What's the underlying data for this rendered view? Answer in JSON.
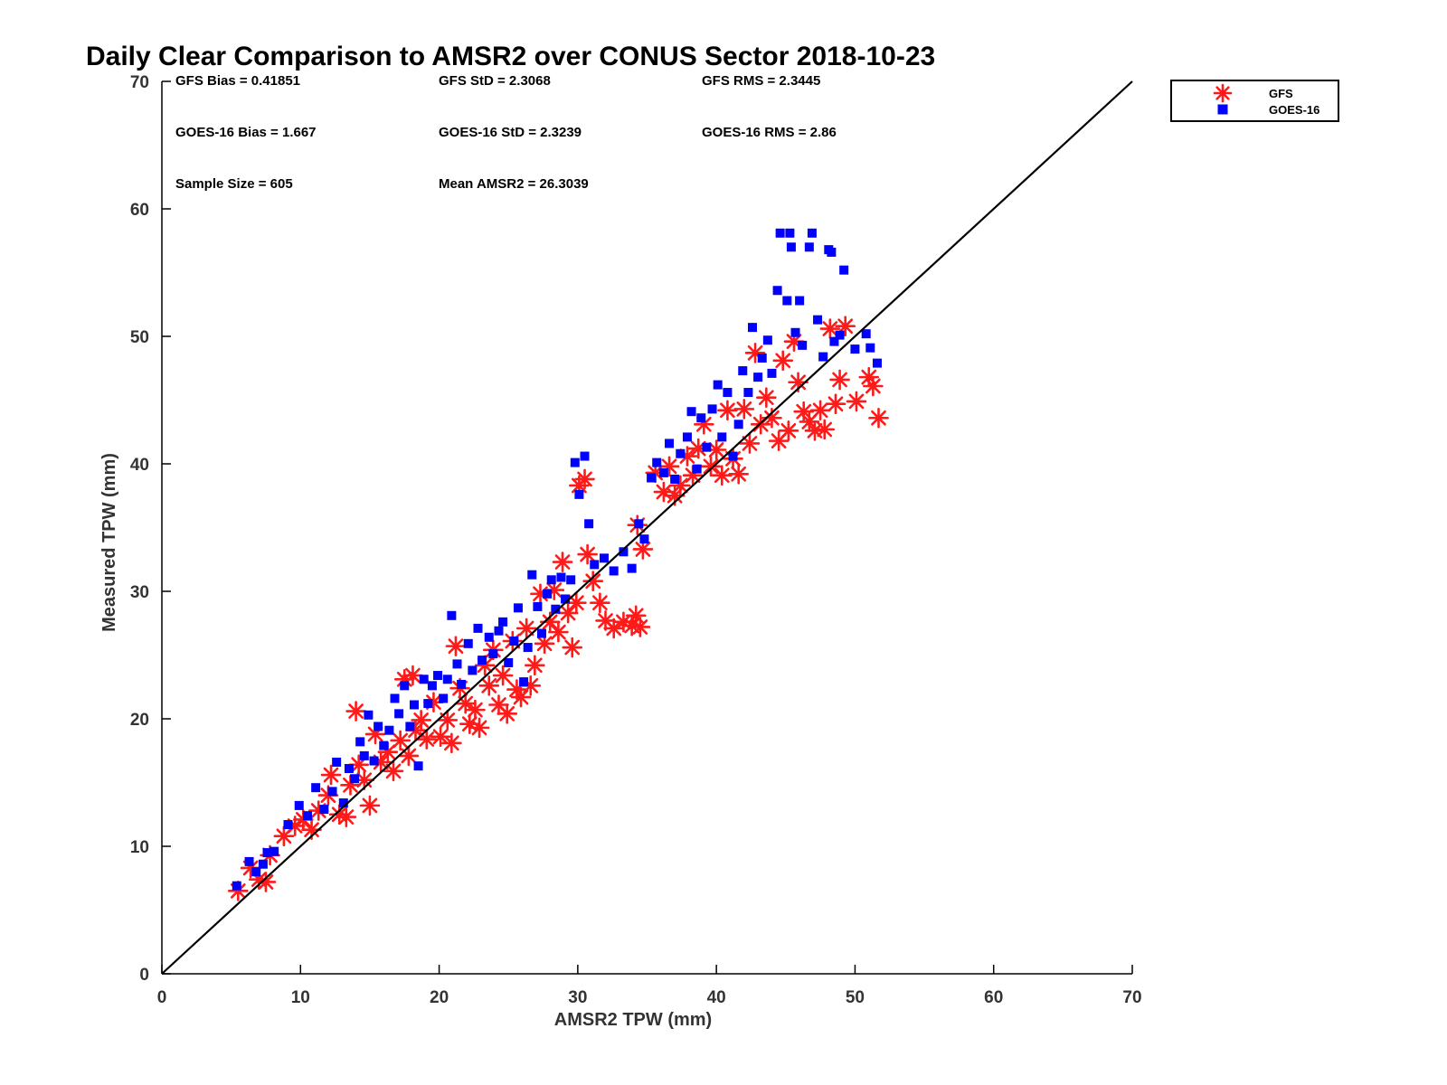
{
  "chart_data": {
    "type": "scatter",
    "title": "Daily Clear Comparison to AMSR2 over CONUS Sector 2018-10-23",
    "xlabel": "AMSR2 TPW (mm)",
    "ylabel": "Measured TPW (mm)",
    "xlim": [
      0,
      70
    ],
    "ylim": [
      0,
      70
    ],
    "xticks": [
      "0",
      "10",
      "20",
      "30",
      "40",
      "50",
      "60",
      "70"
    ],
    "yticks": [
      "0",
      "10",
      "20",
      "30",
      "40",
      "50",
      "60",
      "70"
    ],
    "grid": false,
    "legend_position": "outside-top-right",
    "reference_line": "one-to-one",
    "stats": {
      "gfs_bias": "GFS Bias = 0.41851",
      "gfs_std": "GFS StD = 2.3068",
      "gfs_rms": "GFS RMS = 2.3445",
      "goes_bias": "GOES-16 Bias = 1.667",
      "goes_std": "GOES-16 StD = 2.3239",
      "goes_rms": "GOES-16 RMS = 2.86",
      "sample_size": "Sample Size = 605",
      "mean_amsr2": "Mean AMSR2 = 26.3039"
    },
    "series": [
      {
        "name": "GFS",
        "marker": "asterisk",
        "color": "#ff1a1a",
        "points": [
          [
            5.5,
            6.5
          ],
          [
            6.4,
            8.3
          ],
          [
            7.0,
            7.4
          ],
          [
            7.5,
            7.2
          ],
          [
            7.8,
            9.3
          ],
          [
            8.8,
            10.8
          ],
          [
            9.6,
            11.6
          ],
          [
            10.2,
            12.1
          ],
          [
            10.8,
            11.3
          ],
          [
            11.3,
            12.8
          ],
          [
            12.0,
            14.0
          ],
          [
            12.2,
            15.6
          ],
          [
            12.8,
            12.5
          ],
          [
            13.3,
            12.3
          ],
          [
            13.6,
            14.8
          ],
          [
            14.0,
            20.6
          ],
          [
            14.2,
            16.4
          ],
          [
            14.6,
            15.2
          ],
          [
            15.0,
            13.2
          ],
          [
            15.4,
            18.8
          ],
          [
            15.8,
            16.6
          ],
          [
            16.3,
            17.4
          ],
          [
            16.7,
            15.9
          ],
          [
            17.2,
            18.3
          ],
          [
            17.5,
            23.1
          ],
          [
            17.8,
            17.1
          ],
          [
            18.1,
            23.4
          ],
          [
            18.3,
            19.1
          ],
          [
            18.7,
            19.9
          ],
          [
            19.1,
            18.4
          ],
          [
            19.6,
            21.3
          ],
          [
            20.1,
            18.6
          ],
          [
            20.6,
            19.9
          ],
          [
            20.9,
            18.1
          ],
          [
            21.2,
            25.7
          ],
          [
            21.5,
            22.4
          ],
          [
            21.9,
            21.2
          ],
          [
            22.2,
            19.6
          ],
          [
            22.6,
            20.7
          ],
          [
            22.9,
            19.3
          ],
          [
            23.3,
            24.2
          ],
          [
            23.6,
            22.6
          ],
          [
            23.9,
            25.4
          ],
          [
            24.3,
            21.1
          ],
          [
            24.6,
            23.4
          ],
          [
            24.9,
            20.4
          ],
          [
            25.3,
            26.1
          ],
          [
            25.6,
            22.3
          ],
          [
            25.9,
            21.7
          ],
          [
            26.3,
            27.1
          ],
          [
            26.6,
            22.6
          ],
          [
            26.9,
            24.2
          ],
          [
            27.3,
            29.8
          ],
          [
            27.6,
            25.9
          ],
          [
            28.0,
            27.6
          ],
          [
            28.3,
            30.1
          ],
          [
            28.6,
            26.8
          ],
          [
            28.9,
            32.3
          ],
          [
            29.3,
            28.3
          ],
          [
            29.6,
            25.6
          ],
          [
            29.9,
            29.1
          ],
          [
            30.1,
            38.3
          ],
          [
            30.5,
            38.8
          ],
          [
            30.7,
            32.9
          ],
          [
            31.1,
            30.8
          ],
          [
            31.6,
            29.1
          ],
          [
            32.0,
            27.7
          ],
          [
            32.6,
            27.1
          ],
          [
            33.3,
            27.6
          ],
          [
            33.9,
            27.3
          ],
          [
            34.2,
            28.1
          ],
          [
            34.5,
            27.2
          ],
          [
            34.3,
            35.2
          ],
          [
            34.7,
            33.3
          ],
          [
            35.6,
            39.3
          ],
          [
            36.2,
            37.8
          ],
          [
            36.6,
            39.8
          ],
          [
            37.0,
            37.5
          ],
          [
            37.4,
            38.3
          ],
          [
            37.9,
            40.6
          ],
          [
            38.3,
            39.1
          ],
          [
            38.7,
            41.2
          ],
          [
            39.1,
            43.1
          ],
          [
            39.6,
            39.8
          ],
          [
            40.0,
            41.1
          ],
          [
            40.4,
            39.1
          ],
          [
            40.8,
            44.2
          ],
          [
            41.2,
            40.4
          ],
          [
            41.6,
            39.2
          ],
          [
            42.0,
            44.3
          ],
          [
            42.4,
            41.6
          ],
          [
            42.8,
            48.7
          ],
          [
            43.2,
            43.1
          ],
          [
            43.6,
            45.2
          ],
          [
            44.0,
            43.6
          ],
          [
            44.5,
            41.8
          ],
          [
            44.8,
            48.1
          ],
          [
            45.2,
            42.6
          ],
          [
            45.6,
            49.6
          ],
          [
            45.9,
            46.4
          ],
          [
            46.3,
            44.1
          ],
          [
            46.7,
            43.3
          ],
          [
            47.1,
            42.6
          ],
          [
            47.5,
            44.2
          ],
          [
            47.8,
            42.7
          ],
          [
            48.2,
            50.6
          ],
          [
            48.6,
            44.7
          ],
          [
            48.9,
            46.6
          ],
          [
            49.3,
            50.8
          ],
          [
            50.1,
            44.9
          ],
          [
            51.0,
            46.8
          ],
          [
            51.3,
            46.1
          ],
          [
            51.7,
            43.6
          ]
        ]
      },
      {
        "name": "GOES-16",
        "marker": "square",
        "color": "#0000ff",
        "points": [
          [
            5.4,
            6.9
          ],
          [
            6.3,
            8.8
          ],
          [
            6.8,
            8.0
          ],
          [
            7.3,
            8.6
          ],
          [
            7.6,
            9.5
          ],
          [
            8.1,
            9.6
          ],
          [
            9.1,
            11.7
          ],
          [
            9.9,
            13.2
          ],
          [
            10.5,
            12.4
          ],
          [
            11.1,
            14.6
          ],
          [
            11.7,
            12.9
          ],
          [
            12.3,
            14.3
          ],
          [
            12.6,
            16.6
          ],
          [
            13.1,
            13.4
          ],
          [
            13.5,
            16.1
          ],
          [
            13.9,
            15.3
          ],
          [
            14.3,
            18.2
          ],
          [
            14.6,
            17.1
          ],
          [
            14.9,
            20.3
          ],
          [
            15.3,
            16.7
          ],
          [
            15.6,
            19.4
          ],
          [
            16.0,
            17.9
          ],
          [
            16.4,
            19.1
          ],
          [
            16.8,
            21.6
          ],
          [
            17.1,
            20.4
          ],
          [
            17.5,
            22.6
          ],
          [
            17.9,
            19.4
          ],
          [
            18.2,
            21.1
          ],
          [
            18.5,
            16.3
          ],
          [
            18.9,
            23.1
          ],
          [
            19.2,
            21.2
          ],
          [
            19.5,
            22.6
          ],
          [
            19.9,
            23.4
          ],
          [
            20.3,
            21.6
          ],
          [
            20.6,
            23.1
          ],
          [
            20.9,
            28.1
          ],
          [
            21.3,
            24.3
          ],
          [
            21.6,
            22.7
          ],
          [
            22.1,
            25.9
          ],
          [
            22.4,
            23.8
          ],
          [
            22.8,
            27.1
          ],
          [
            23.1,
            24.6
          ],
          [
            23.6,
            26.4
          ],
          [
            23.9,
            25.1
          ],
          [
            24.3,
            26.9
          ],
          [
            24.6,
            27.6
          ],
          [
            25.0,
            24.4
          ],
          [
            25.4,
            26.1
          ],
          [
            25.7,
            28.7
          ],
          [
            26.1,
            22.9
          ],
          [
            26.4,
            25.6
          ],
          [
            26.7,
            31.3
          ],
          [
            27.1,
            28.8
          ],
          [
            27.4,
            26.7
          ],
          [
            27.8,
            29.8
          ],
          [
            28.1,
            30.9
          ],
          [
            28.4,
            28.6
          ],
          [
            28.8,
            31.1
          ],
          [
            29.1,
            29.4
          ],
          [
            29.5,
            30.9
          ],
          [
            29.8,
            40.1
          ],
          [
            30.1,
            37.6
          ],
          [
            30.5,
            40.6
          ],
          [
            30.8,
            35.3
          ],
          [
            31.2,
            32.1
          ],
          [
            31.9,
            32.6
          ],
          [
            32.6,
            31.6
          ],
          [
            33.3,
            33.1
          ],
          [
            33.9,
            31.8
          ],
          [
            34.4,
            35.3
          ],
          [
            34.8,
            34.1
          ],
          [
            35.3,
            38.9
          ],
          [
            35.7,
            40.1
          ],
          [
            36.2,
            39.3
          ],
          [
            36.6,
            41.6
          ],
          [
            37.0,
            38.8
          ],
          [
            37.4,
            40.8
          ],
          [
            37.9,
            42.1
          ],
          [
            38.2,
            44.1
          ],
          [
            38.6,
            39.6
          ],
          [
            38.9,
            43.6
          ],
          [
            39.3,
            41.3
          ],
          [
            39.7,
            44.3
          ],
          [
            40.1,
            46.2
          ],
          [
            40.4,
            42.1
          ],
          [
            40.8,
            45.6
          ],
          [
            41.2,
            40.6
          ],
          [
            41.6,
            43.1
          ],
          [
            41.9,
            47.3
          ],
          [
            42.3,
            45.6
          ],
          [
            42.6,
            50.7
          ],
          [
            43.0,
            46.8
          ],
          [
            43.3,
            48.3
          ],
          [
            43.7,
            49.7
          ],
          [
            44.0,
            47.1
          ],
          [
            44.4,
            53.6
          ],
          [
            44.6,
            58.1
          ],
          [
            45.3,
            58.1
          ],
          [
            45.1,
            52.8
          ],
          [
            45.4,
            57.0
          ],
          [
            45.7,
            50.3
          ],
          [
            46.0,
            52.8
          ],
          [
            46.2,
            49.3
          ],
          [
            46.7,
            57.0
          ],
          [
            46.9,
            58.1
          ],
          [
            47.3,
            51.3
          ],
          [
            47.7,
            48.4
          ],
          [
            48.1,
            56.8
          ],
          [
            48.3,
            56.6
          ],
          [
            48.5,
            49.6
          ],
          [
            48.9,
            50.1
          ],
          [
            49.2,
            55.2
          ],
          [
            50.0,
            49.0
          ],
          [
            50.8,
            50.2
          ],
          [
            51.1,
            49.1
          ],
          [
            51.6,
            47.9
          ]
        ]
      }
    ]
  }
}
